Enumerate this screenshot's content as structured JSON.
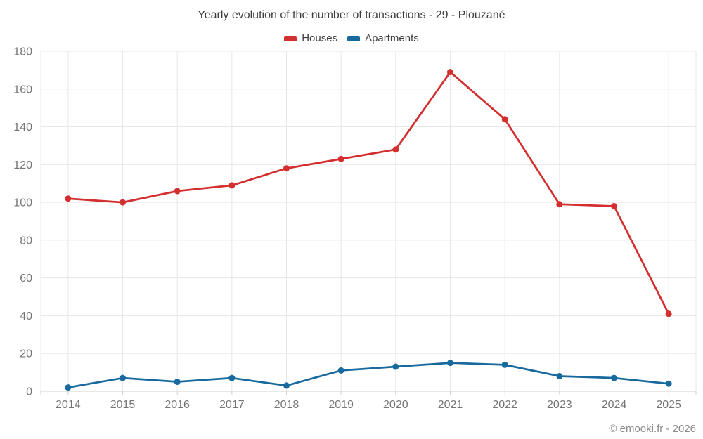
{
  "title": "Yearly evolution of the number of transactions - 29 - Plouzané",
  "footer": "© emooki.fr - 2026",
  "chart_data": {
    "type": "line",
    "categories": [
      "2014",
      "2015",
      "2016",
      "2017",
      "2018",
      "2019",
      "2020",
      "2021",
      "2022",
      "2023",
      "2024",
      "2025"
    ],
    "series": [
      {
        "name": "Houses",
        "color": "#d32f2f",
        "values": [
          102,
          100,
          106,
          109,
          118,
          123,
          128,
          169,
          144,
          99,
          98,
          41
        ]
      },
      {
        "name": "Apartments",
        "color": "#17699e",
        "values": [
          2,
          7,
          5,
          7,
          3,
          11,
          13,
          15,
          14,
          8,
          7,
          4
        ]
      }
    ],
    "title": "Yearly evolution of the number of transactions - 29 - Plouzané",
    "xlabel": "",
    "ylabel": "",
    "ylim": [
      0,
      180
    ],
    "ytick_step": 20,
    "ytick_labels": [
      "0",
      "20",
      "40",
      "60",
      "80",
      "100",
      "120",
      "140",
      "160",
      "180"
    ],
    "grid": true,
    "legend_position": "top",
    "marker": "circle",
    "grid_color": "#e7e7e7",
    "axis_line_color": "#d0d0d0",
    "axis_label_color": "#757575"
  }
}
